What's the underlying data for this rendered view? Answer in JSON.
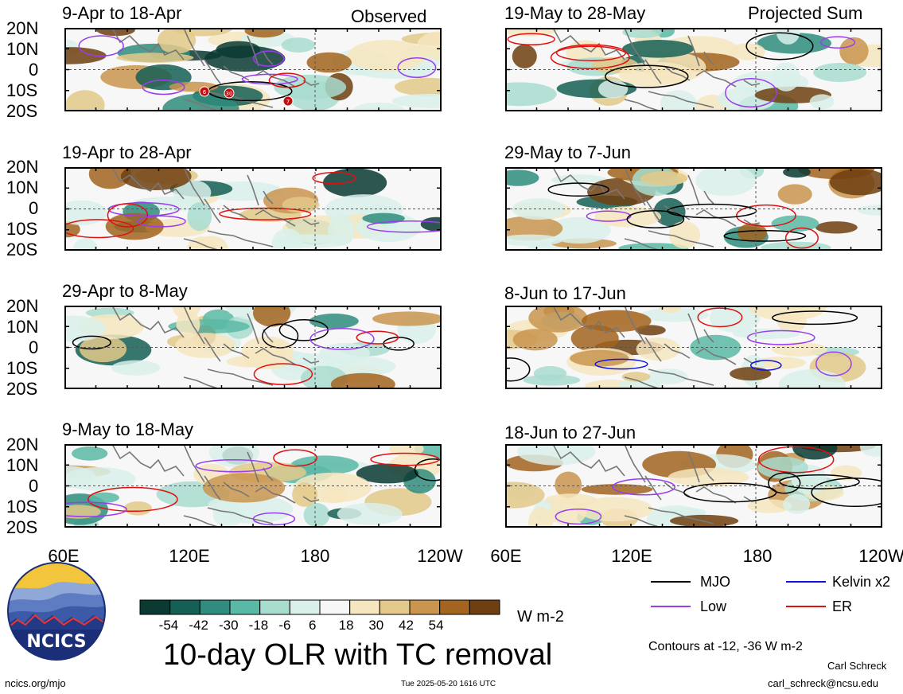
{
  "header": {
    "observed_label": "Observed",
    "projected_label": "Projected Sum"
  },
  "panels": {
    "left": [
      {
        "title": "9-Apr to 18-Apr"
      },
      {
        "title": "19-Apr to 28-Apr"
      },
      {
        "title": "29-Apr to 8-May"
      },
      {
        "title": "9-May to 18-May"
      }
    ],
    "right": [
      {
        "title": "19-May to 28-May"
      },
      {
        "title": "29-May to 7-Jun"
      },
      {
        "title": "8-Jun to 17-Jun"
      },
      {
        "title": "18-Jun to 27-Jun"
      }
    ]
  },
  "axes": {
    "lat_labels": [
      "20N",
      "10N",
      "0",
      "10S",
      "20S"
    ],
    "lon_labels": [
      "60E",
      "120E",
      "180",
      "120W"
    ]
  },
  "tc_markers": [
    "6",
    "30",
    "7"
  ],
  "colorbar": {
    "ticks": [
      "-54",
      "-42",
      "-30",
      "-18",
      "-6",
      "6",
      "18",
      "30",
      "42",
      "54"
    ],
    "colors": [
      "#0a3a32",
      "#155f54",
      "#2f8c7e",
      "#5ab8a6",
      "#a8dccf",
      "#d9f0ea",
      "#f7f7f7",
      "#f6e6bf",
      "#e3c98a",
      "#c9954f",
      "#a2641f",
      "#6e4011"
    ],
    "units": "W m-2"
  },
  "legend": {
    "items": [
      {
        "label": "MJO",
        "color": "#000000"
      },
      {
        "label": "Kelvin x2",
        "color": "#1010e0"
      },
      {
        "label": "Low",
        "color": "#9a3cf0"
      },
      {
        "label": "ER",
        "color": "#e01010"
      }
    ],
    "contours_note": "Contours at -12, -36 W m-2"
  },
  "footer": {
    "title": "10-day OLR with TC removal",
    "website": "ncics.org/mjo",
    "timestamp": "Tue 2025-05-20 1616 UTC",
    "author": "Carl Schreck",
    "email": "carl_schreck@ncsu.edu",
    "logo_text": "NCICS"
  }
}
